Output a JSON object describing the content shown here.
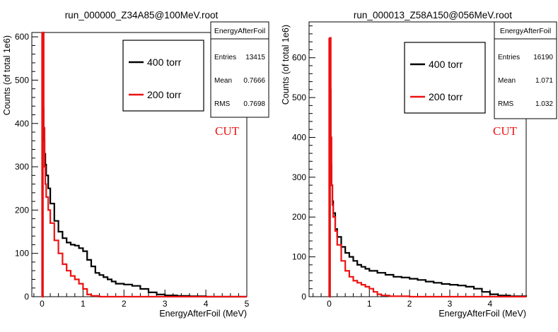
{
  "chart_data": [
    {
      "type": "histogram-step",
      "title": "run_000000_Z34A85@100MeV.root",
      "xlabel": "EnergyAfterFoil (MeV)",
      "ylabel": "Counts (of total 1e6)",
      "xlim": [
        -0.25,
        5.0
      ],
      "ylim": [
        0,
        610
      ],
      "xticks": [
        0,
        1,
        2,
        3,
        4,
        5
      ],
      "yticks": [
        0,
        100,
        200,
        300,
        400,
        500,
        600
      ],
      "annotation": "CUT",
      "cut_x": 0,
      "legend": {
        "position": "top-right",
        "entries": [
          {
            "label": "400 torr",
            "color": "#000000"
          },
          {
            "label": "200 torr",
            "color": "#ee1111"
          }
        ]
      },
      "stats": {
        "title": "EnergyAfterFoil",
        "rows": [
          {
            "key": "Entries",
            "value": "13415"
          },
          {
            "key": "Mean",
            "value": "0.7666"
          },
          {
            "key": "RMS",
            "value": "0.7698"
          }
        ]
      },
      "series": [
        {
          "name": "400 torr",
          "color": "#000000",
          "x": [
            0.0,
            0.02,
            0.04,
            0.06,
            0.08,
            0.1,
            0.15,
            0.2,
            0.3,
            0.4,
            0.5,
            0.6,
            0.7,
            0.8,
            0.9,
            1.0,
            1.1,
            1.2,
            1.3,
            1.4,
            1.5,
            1.6,
            1.7,
            1.8,
            2.0,
            2.2,
            2.4,
            2.6,
            2.8,
            3.0,
            3.3,
            3.6,
            4.0,
            4.5,
            5.0
          ],
          "y": [
            0,
            435,
            360,
            330,
            305,
            280,
            250,
            215,
            175,
            150,
            135,
            125,
            120,
            118,
            112,
            105,
            85,
            70,
            55,
            50,
            45,
            40,
            35,
            30,
            28,
            25,
            18,
            10,
            5,
            3,
            2,
            1,
            0,
            0,
            0
          ]
        },
        {
          "name": "200 torr",
          "color": "#ee1111",
          "x": [
            0.0,
            0.02,
            0.04,
            0.06,
            0.08,
            0.1,
            0.15,
            0.2,
            0.3,
            0.4,
            0.5,
            0.6,
            0.7,
            0.8,
            0.9,
            1.0,
            1.1,
            1.2,
            1.4,
            1.6,
            2.0,
            5.0
          ],
          "y": [
            0,
            610,
            390,
            300,
            260,
            230,
            200,
            170,
            130,
            100,
            75,
            60,
            48,
            40,
            30,
            18,
            5,
            2,
            0,
            0,
            0,
            0
          ]
        }
      ]
    },
    {
      "type": "histogram-step",
      "title": "run_000013_Z58A150@056MeV.root",
      "xlabel": "EnergyAfterFoil (MeV)",
      "ylabel": "Counts (of total 1e6)",
      "xlim": [
        -0.5,
        4.9
      ],
      "ylim": [
        0,
        690
      ],
      "xticks": [
        0,
        1,
        2,
        3,
        4
      ],
      "yticks": [
        0,
        100,
        200,
        300,
        400,
        500,
        600
      ],
      "annotation": "CUT",
      "cut_x": 0,
      "legend": {
        "position": "top-right",
        "entries": [
          {
            "label": "400 torr",
            "color": "#000000"
          },
          {
            "label": "200 torr",
            "color": "#ee1111"
          }
        ]
      },
      "stats": {
        "title": "EnergyAfterFoil",
        "rows": [
          {
            "key": "Entries",
            "value": "16190"
          },
          {
            "key": "Mean",
            "value": "1.071"
          },
          {
            "key": "RMS",
            "value": "1.032"
          }
        ]
      },
      "series": [
        {
          "name": "400 torr",
          "color": "#000000",
          "x": [
            0.0,
            0.02,
            0.04,
            0.06,
            0.08,
            0.1,
            0.15,
            0.2,
            0.3,
            0.4,
            0.5,
            0.6,
            0.7,
            0.8,
            0.9,
            1.0,
            1.2,
            1.4,
            1.6,
            1.8,
            2.0,
            2.2,
            2.4,
            2.6,
            2.8,
            3.0,
            3.2,
            3.4,
            3.6,
            3.8,
            4.0,
            4.2,
            4.5,
            4.9
          ],
          "y": [
            0,
            520,
            330,
            280,
            240,
            210,
            170,
            150,
            125,
            110,
            100,
            90,
            80,
            75,
            70,
            65,
            60,
            55,
            50,
            48,
            45,
            42,
            38,
            35,
            32,
            30,
            28,
            25,
            20,
            12,
            6,
            3,
            1,
            0
          ]
        },
        {
          "name": "200 torr",
          "color": "#ee1111",
          "x": [
            0.0,
            0.02,
            0.04,
            0.06,
            0.08,
            0.1,
            0.15,
            0.2,
            0.3,
            0.4,
            0.5,
            0.6,
            0.7,
            0.8,
            0.9,
            1.0,
            1.1,
            1.2,
            1.3,
            1.5,
            2.0,
            4.9
          ],
          "y": [
            0,
            650,
            400,
            280,
            230,
            200,
            165,
            130,
            90,
            65,
            50,
            40,
            35,
            30,
            25,
            20,
            12,
            6,
            3,
            1,
            0,
            0
          ]
        }
      ]
    }
  ]
}
